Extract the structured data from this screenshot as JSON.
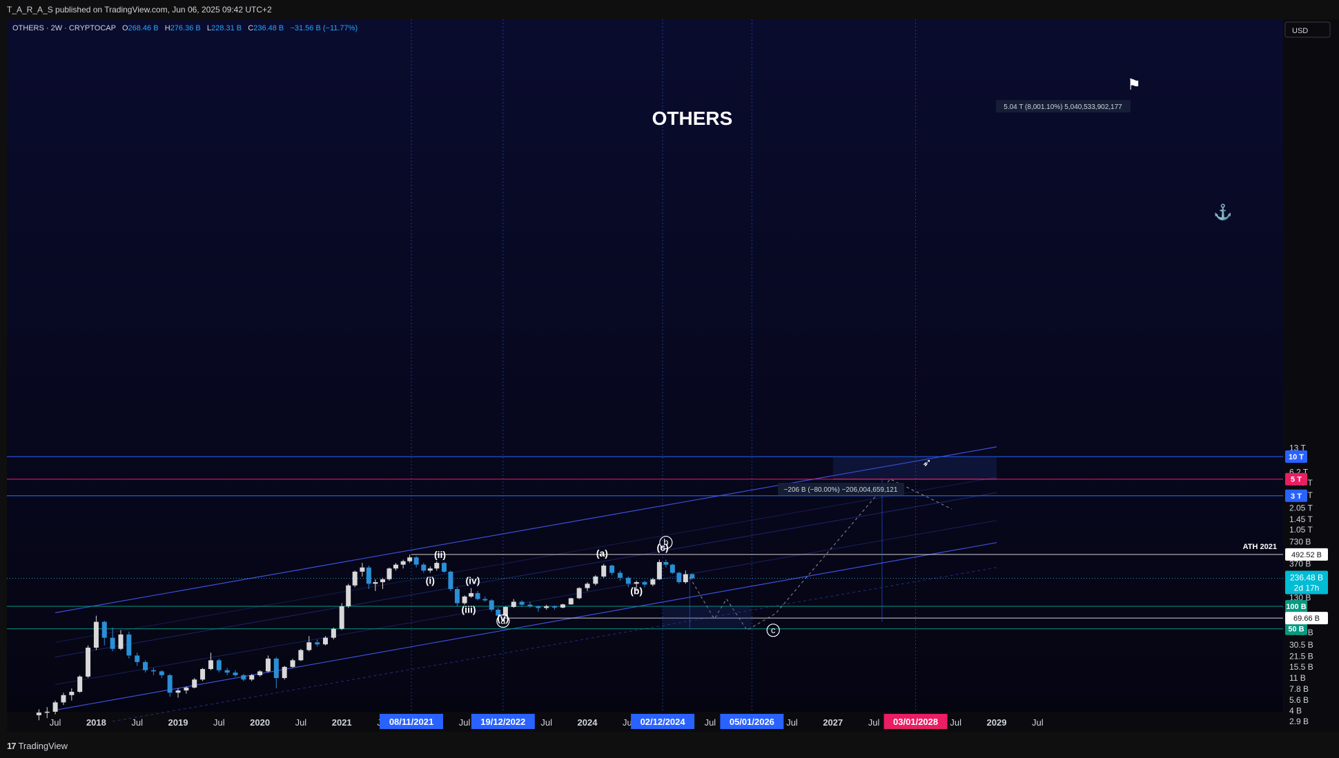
{
  "header": {
    "publisher_line": "T_A_R_A_S published on TradingView.com, Jun 06, 2025 09:42 UTC+2"
  },
  "footer": {
    "brand": "TradingView",
    "brand_mark": "17"
  },
  "legend": {
    "symbol": "OTHERS · 2W · CRYPTOCAP",
    "o_label": "O",
    "o_value": "268.46 B",
    "h_label": "H",
    "h_value": "276.36 B",
    "l_label": "L",
    "l_value": "228.31 B",
    "c_label": "C",
    "c_value": "236.48 B",
    "change": "−31.56 B (−11.77%)"
  },
  "currency": "USD",
  "chart_data": {
    "type": "candlestick",
    "title": "OTHERS",
    "y_scale": "log",
    "y_ticks": [
      {
        "v": 13000,
        "label": "13 T"
      },
      {
        "v": 9000,
        "label": "9 T"
      },
      {
        "v": 6200,
        "label": "6.2 T"
      },
      {
        "v": 4450,
        "label": "4.45 T"
      },
      {
        "v": 3050,
        "label": "3.05 T"
      },
      {
        "v": 2050,
        "label": "2.05 T"
      },
      {
        "v": 1450,
        "label": "1.45 T"
      },
      {
        "v": 1050,
        "label": "1.05 T"
      },
      {
        "v": 730,
        "label": "730 B"
      },
      {
        "v": 520,
        "label": "520 B"
      },
      {
        "v": 370,
        "label": "370 B"
      },
      {
        "v": 270,
        "label": "270 B"
      },
      {
        "v": 190,
        "label": "190 B"
      },
      {
        "v": 130,
        "label": "130 B"
      },
      {
        "v": 90,
        "label": "90 B"
      },
      {
        "v": 62,
        "label": "62 B"
      },
      {
        "v": 44.5,
        "label": "44.5 B"
      },
      {
        "v": 30.5,
        "label": "30.5 B"
      },
      {
        "v": 21.5,
        "label": "21.5 B"
      },
      {
        "v": 15.5,
        "label": "15.5 B"
      },
      {
        "v": 11,
        "label": "11 B"
      },
      {
        "v": 7.8,
        "label": "7.8 B"
      },
      {
        "v": 5.6,
        "label": "5.6 B"
      },
      {
        "v": 4,
        "label": "4 B"
      },
      {
        "v": 2.9,
        "label": "2.9 B"
      }
    ],
    "x_ticks": [
      {
        "t": 2017.5,
        "label": "Jul",
        "bold": false
      },
      {
        "t": 2018.0,
        "label": "2018",
        "bold": true
      },
      {
        "t": 2018.5,
        "label": "Jul",
        "bold": false
      },
      {
        "t": 2019.0,
        "label": "2019",
        "bold": true
      },
      {
        "t": 2019.5,
        "label": "Jul",
        "bold": false
      },
      {
        "t": 2020.0,
        "label": "2020",
        "bold": true
      },
      {
        "t": 2020.5,
        "label": "Jul",
        "bold": false
      },
      {
        "t": 2021.0,
        "label": "2021",
        "bold": true
      },
      {
        "t": 2021.5,
        "label": "Jul",
        "bold": false
      },
      {
        "t": 2022.5,
        "label": "Jul",
        "bold": false
      },
      {
        "t": 2023.5,
        "label": "Jul",
        "bold": false
      },
      {
        "t": 2024.0,
        "label": "2024",
        "bold": true
      },
      {
        "t": 2024.5,
        "label": "Jul",
        "bold": false
      },
      {
        "t": 2025.5,
        "label": "Jul",
        "bold": false
      },
      {
        "t": 2026.5,
        "label": "Jul",
        "bold": false
      },
      {
        "t": 2027.0,
        "label": "2027",
        "bold": true
      },
      {
        "t": 2027.5,
        "label": "Jul",
        "bold": false
      },
      {
        "t": 2028.5,
        "label": "Jul",
        "bold": false
      },
      {
        "t": 2029.0,
        "label": "2029",
        "bold": true
      },
      {
        "t": 2029.5,
        "label": "Jul",
        "bold": false
      }
    ],
    "date_markers": [
      {
        "t": 2021.85,
        "label": "08/11/2021",
        "color": "#2962ff"
      },
      {
        "t": 2022.97,
        "label": "19/12/2022",
        "color": "#2962ff"
      },
      {
        "t": 2024.92,
        "label": "02/12/2024",
        "color": "#2962ff"
      },
      {
        "t": 2026.01,
        "label": "05/01/2026",
        "color": "#2962ff"
      },
      {
        "t": 2028.01,
        "label": "03/01/2028",
        "color": "#e91e63"
      }
    ],
    "price_levels": [
      {
        "v": 10000,
        "label": "10 T",
        "color": "#2962ff"
      },
      {
        "v": 5000,
        "label": "5 T",
        "color": "#e91e63"
      },
      {
        "v": 3000,
        "label": "3 T",
        "color": "#2962ff"
      },
      {
        "v": 100,
        "label": "100 B",
        "color": "#089981"
      },
      {
        "v": 50,
        "label": "50 B",
        "color": "#089981"
      }
    ],
    "horizontal_marks": [
      {
        "v": 492.52,
        "label": "492.52 B",
        "note": "ATH 2021",
        "t_start": 2021.85
      },
      {
        "v": 69.66,
        "label": "69.66 B",
        "t_start": 2022.97
      }
    ],
    "last_price": {
      "v": 236.48,
      "label": "236.48 B",
      "countdown": "2d 17h"
    },
    "wave_labels": [
      {
        "t": 2022.2,
        "v": 440,
        "text": "(ii)",
        "circled": false
      },
      {
        "t": 2022.08,
        "v": 200,
        "text": "(i)",
        "circled": false
      },
      {
        "t": 2022.6,
        "v": 200,
        "text": "(iv)",
        "circled": false
      },
      {
        "t": 2022.55,
        "v": 82,
        "text": "(iii)",
        "circled": false
      },
      {
        "t": 2022.97,
        "v": 63,
        "text": "(v)",
        "circled": false
      },
      {
        "t": 2022.97,
        "v": 57,
        "text": "a",
        "circled": true
      },
      {
        "t": 2024.18,
        "v": 460,
        "text": "(a)",
        "circled": false
      },
      {
        "t": 2024.6,
        "v": 145,
        "text": "(b)",
        "circled": false
      },
      {
        "t": 2024.92,
        "v": 550,
        "text": "(c)",
        "circled": false
      },
      {
        "t": 2024.96,
        "v": 640,
        "text": "b",
        "circled": true
      },
      {
        "t": 2026.27,
        "v": 43,
        "text": "c",
        "circled": true
      }
    ],
    "measures": [
      {
        "text": "5.04 T (8,001.10%) 5,040,533,902,177"
      },
      {
        "text": "−206 B (−80.00%) −206,004,659,121"
      }
    ],
    "icons": [
      "flag-icon",
      "anchor-icon",
      "rocket-icon"
    ],
    "projection_path": [
      [
        2025.25,
        245
      ],
      [
        2025.55,
        68
      ],
      [
        2025.7,
        125
      ],
      [
        2025.95,
        48
      ],
      [
        2026.3,
        80
      ],
      [
        2027.7,
        5000
      ],
      [
        2028.45,
        2000
      ]
    ],
    "series": [
      {
        "name": "OTHERS",
        "candles": [
          [
            2017.3,
            3.5,
            4.2,
            3.0,
            3.8
          ],
          [
            2017.4,
            3.8,
            4.5,
            3.2,
            3.9
          ],
          [
            2017.5,
            3.9,
            5.5,
            3.6,
            5.2
          ],
          [
            2017.6,
            5.2,
            7.0,
            4.8,
            6.5
          ],
          [
            2017.7,
            6.5,
            8.0,
            5.5,
            7.2
          ],
          [
            2017.8,
            7.2,
            12.0,
            7.0,
            11.5
          ],
          [
            2017.9,
            11.5,
            30.0,
            11.0,
            28.0
          ],
          [
            2018.0,
            28.0,
            75.0,
            26.0,
            62.0
          ],
          [
            2018.1,
            62.0,
            64.0,
            30.0,
            38.0
          ],
          [
            2018.2,
            38.0,
            52.0,
            25.0,
            27.0
          ],
          [
            2018.3,
            27.0,
            48.0,
            26.0,
            42.0
          ],
          [
            2018.4,
            42.0,
            46.0,
            20.0,
            22.0
          ],
          [
            2018.5,
            22.0,
            24.0,
            16.0,
            18.0
          ],
          [
            2018.6,
            18.0,
            19.0,
            13.0,
            14.0
          ],
          [
            2018.7,
            14.0,
            15.0,
            12.0,
            13.5
          ],
          [
            2018.8,
            13.5,
            14.0,
            11.0,
            12.0
          ],
          [
            2018.9,
            12.0,
            12.5,
            6.2,
            7.0
          ],
          [
            2019.0,
            7.0,
            8.0,
            6.0,
            7.5
          ],
          [
            2019.1,
            7.5,
            8.5,
            6.8,
            8.2
          ],
          [
            2019.2,
            8.2,
            11.0,
            8.0,
            10.5
          ],
          [
            2019.3,
            10.5,
            15.0,
            10.0,
            14.5
          ],
          [
            2019.4,
            14.5,
            24.0,
            14.0,
            19.0
          ],
          [
            2019.5,
            19.0,
            20.0,
            13.0,
            14.0
          ],
          [
            2019.6,
            14.0,
            15.0,
            12.0,
            13.0
          ],
          [
            2019.7,
            13.0,
            14.0,
            11.5,
            12.0
          ],
          [
            2019.8,
            12.0,
            12.5,
            10.0,
            10.5
          ],
          [
            2019.9,
            10.5,
            12.5,
            10.0,
            12.0
          ],
          [
            2020.0,
            12.0,
            14.0,
            11.5,
            13.5
          ],
          [
            2020.1,
            13.5,
            22.0,
            13.0,
            20.0
          ],
          [
            2020.2,
            20.0,
            21.0,
            8.0,
            11.0
          ],
          [
            2020.3,
            11.0,
            16.0,
            10.5,
            15.5
          ],
          [
            2020.4,
            15.5,
            20.0,
            15.0,
            19.0
          ],
          [
            2020.5,
            19.0,
            27.0,
            18.5,
            26.0
          ],
          [
            2020.6,
            26.0,
            40.0,
            25.0,
            33.0
          ],
          [
            2020.7,
            33.0,
            36.0,
            29.0,
            31.0
          ],
          [
            2020.8,
            31.0,
            40.0,
            30.0,
            38.0
          ],
          [
            2020.9,
            38.0,
            52.0,
            36.0,
            50.0
          ],
          [
            2021.0,
            50.0,
            110.0,
            48.0,
            100.0
          ],
          [
            2021.08,
            100.0,
            200.0,
            95.0,
            190.0
          ],
          [
            2021.16,
            190.0,
            300.0,
            180.0,
            290.0
          ],
          [
            2021.25,
            290.0,
            380.0,
            250.0,
            330.0
          ],
          [
            2021.33,
            330.0,
            350.0,
            170.0,
            200.0
          ],
          [
            2021.41,
            200.0,
            230.0,
            160.0,
            210.0
          ],
          [
            2021.5,
            210.0,
            240.0,
            170.0,
            230.0
          ],
          [
            2021.58,
            230.0,
            330.0,
            220.0,
            320.0
          ],
          [
            2021.66,
            320.0,
            380.0,
            300.0,
            360.0
          ],
          [
            2021.75,
            360.0,
            420.0,
            320.0,
            400.0
          ],
          [
            2021.83,
            400.0,
            492.52,
            380.0,
            450.0
          ],
          [
            2021.91,
            450.0,
            470.0,
            330.0,
            360.0
          ],
          [
            2022.0,
            360.0,
            380.0,
            280.0,
            300.0
          ],
          [
            2022.08,
            300.0,
            340.0,
            280.0,
            320.0
          ],
          [
            2022.16,
            320.0,
            400.0,
            300.0,
            380.0
          ],
          [
            2022.25,
            380.0,
            390.0,
            280.0,
            290.0
          ],
          [
            2022.33,
            290.0,
            300.0,
            160.0,
            170.0
          ],
          [
            2022.41,
            170.0,
            180.0,
            100.0,
            110.0
          ],
          [
            2022.5,
            110.0,
            140.0,
            105.0,
            135.0
          ],
          [
            2022.58,
            135.0,
            175.0,
            130.0,
            150.0
          ],
          [
            2022.66,
            150.0,
            160.0,
            120.0,
            125.0
          ],
          [
            2022.75,
            125.0,
            135.0,
            115.0,
            120.0
          ],
          [
            2022.83,
            120.0,
            125.0,
            85.0,
            90.0
          ],
          [
            2022.91,
            90.0,
            95.0,
            69.66,
            75.0
          ],
          [
            2023.0,
            75.0,
            100.0,
            74.0,
            98.0
          ],
          [
            2023.1,
            98.0,
            125.0,
            95.0,
            115.0
          ],
          [
            2023.2,
            115.0,
            120.0,
            98.0,
            105.0
          ],
          [
            2023.3,
            105.0,
            115.0,
            95.0,
            100.0
          ],
          [
            2023.4,
            100.0,
            102.0,
            85.0,
            95.0
          ],
          [
            2023.5,
            95.0,
            105.0,
            90.0,
            100.0
          ],
          [
            2023.6,
            100.0,
            103.0,
            90.0,
            96.0
          ],
          [
            2023.7,
            96.0,
            108.0,
            94.0,
            106.0
          ],
          [
            2023.8,
            106.0,
            130.0,
            105.0,
            128.0
          ],
          [
            2023.9,
            128.0,
            180.0,
            125.0,
            175.0
          ],
          [
            2024.0,
            175.0,
            210.0,
            160.0,
            200.0
          ],
          [
            2024.1,
            200.0,
            260.0,
            190.0,
            250.0
          ],
          [
            2024.2,
            250.0,
            370.0,
            240.0,
            350.0
          ],
          [
            2024.3,
            350.0,
            360.0,
            260.0,
            280.0
          ],
          [
            2024.4,
            280.0,
            300.0,
            220.0,
            240.0
          ],
          [
            2024.5,
            240.0,
            250.0,
            180.0,
            200.0
          ],
          [
            2024.6,
            200.0,
            220.0,
            160.0,
            210.0
          ],
          [
            2024.7,
            210.0,
            220.0,
            180.0,
            195.0
          ],
          [
            2024.8,
            195.0,
            240.0,
            185.0,
            230.0
          ],
          [
            2024.88,
            230.0,
            420.0,
            225.0,
            390.0
          ],
          [
            2024.96,
            390.0,
            420.0,
            330.0,
            360.0
          ],
          [
            2025.04,
            360.0,
            370.0,
            270.0,
            280.0
          ],
          [
            2025.12,
            280.0,
            290.0,
            200.0,
            210.0
          ],
          [
            2025.2,
            210.0,
            300.0,
            200.0,
            268.46
          ],
          [
            2025.28,
            268.46,
            276.36,
            228.31,
            236.48
          ]
        ]
      }
    ]
  }
}
